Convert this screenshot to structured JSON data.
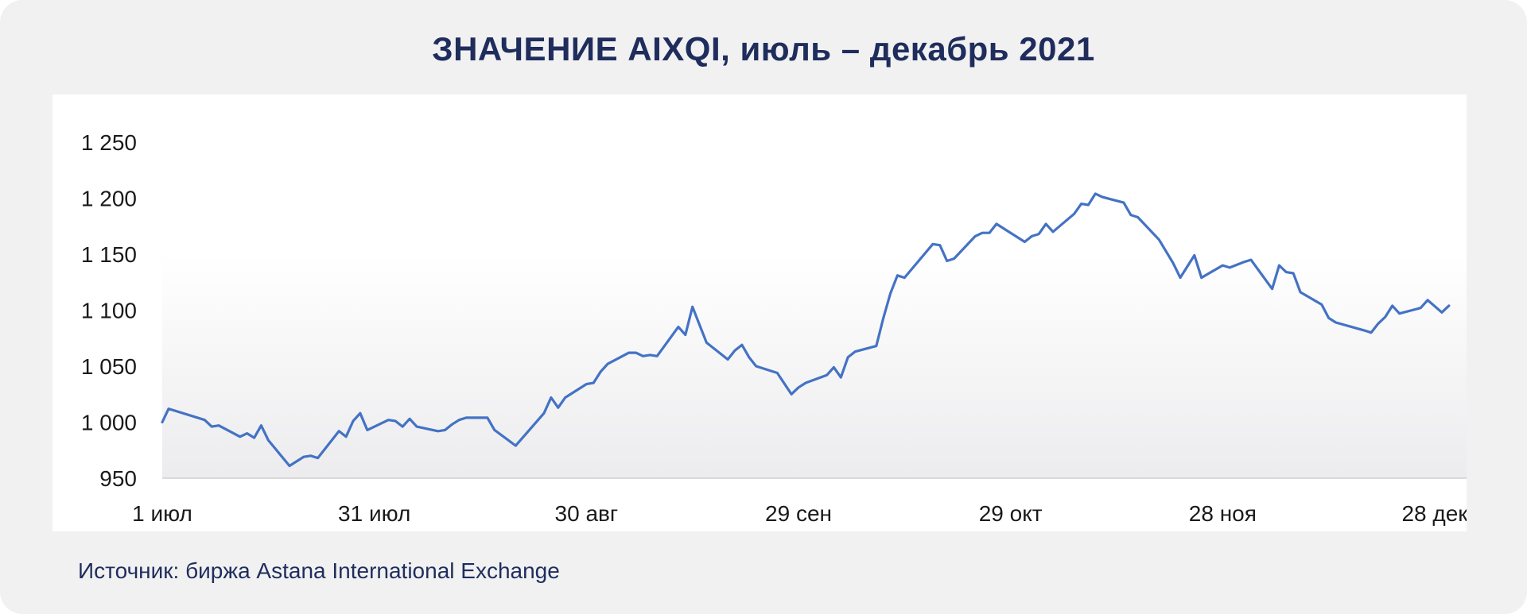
{
  "title": "ЗНАЧЕНИЕ AIXQI, июль – декабрь 2021",
  "source": "Источник: биржа Astana International Exchange",
  "chart_data": {
    "type": "line",
    "title": "ЗНАЧЕНИЕ AIXQI, июль – декабрь 2021",
    "xlabel": "",
    "ylabel": "",
    "x_ticks": [
      {
        "day": 0,
        "label": "1 июл"
      },
      {
        "day": 30,
        "label": "31 июл"
      },
      {
        "day": 60,
        "label": "30 авг"
      },
      {
        "day": 90,
        "label": "29 сен"
      },
      {
        "day": 120,
        "label": "29 окт"
      },
      {
        "day": 150,
        "label": "28 ноя"
      },
      {
        "day": 180,
        "label": "28 дек"
      }
    ],
    "y_ticks": [
      {
        "value": 950,
        "label": "950"
      },
      {
        "value": 1000,
        "label": "1 000"
      },
      {
        "value": 1050,
        "label": "1 050"
      },
      {
        "value": 1100,
        "label": "1 100"
      },
      {
        "value": 1150,
        "label": "1 150"
      },
      {
        "value": 1200,
        "label": "1 200"
      },
      {
        "value": 1250,
        "label": "1 250"
      }
    ],
    "xlim": [
      0,
      180
    ],
    "ylim": [
      950,
      1250
    ],
    "grid": false,
    "series": [
      {
        "color": "#4472c4",
        "points": [
          [
            0,
            1000
          ],
          [
            0.9,
            1012
          ],
          [
            6,
            1002
          ],
          [
            7,
            996
          ],
          [
            8,
            997
          ],
          [
            11,
            987
          ],
          [
            12,
            990
          ],
          [
            13,
            986
          ],
          [
            14,
            997
          ],
          [
            15,
            984
          ],
          [
            18,
            961
          ],
          [
            20,
            969
          ],
          [
            21,
            970
          ],
          [
            22,
            968
          ],
          [
            25,
            992
          ],
          [
            26,
            987
          ],
          [
            27,
            1001
          ],
          [
            28,
            1008
          ],
          [
            29,
            993
          ],
          [
            32,
            1002
          ],
          [
            33,
            1001
          ],
          [
            34,
            996
          ],
          [
            35,
            1003
          ],
          [
            36,
            996
          ],
          [
            39,
            992
          ],
          [
            40,
            993
          ],
          [
            41,
            998
          ],
          [
            42,
            1002
          ],
          [
            43,
            1004
          ],
          [
            46,
            1004
          ],
          [
            47,
            993
          ],
          [
            50,
            979
          ],
          [
            54,
            1008
          ],
          [
            55,
            1022
          ],
          [
            56,
            1013
          ],
          [
            57,
            1022
          ],
          [
            60,
            1034
          ],
          [
            61,
            1035
          ],
          [
            62,
            1045
          ],
          [
            63,
            1052
          ],
          [
            66,
            1062
          ],
          [
            67,
            1062
          ],
          [
            68,
            1059
          ],
          [
            69,
            1060
          ],
          [
            70,
            1059
          ],
          [
            73,
            1085
          ],
          [
            74,
            1078
          ],
          [
            75,
            1103
          ],
          [
            77,
            1071
          ],
          [
            80,
            1056
          ],
          [
            81,
            1064
          ],
          [
            82,
            1069
          ],
          [
            83,
            1058
          ],
          [
            84,
            1050
          ],
          [
            87,
            1044
          ],
          [
            89,
            1025
          ],
          [
            90,
            1031
          ],
          [
            91,
            1035
          ],
          [
            94,
            1042
          ],
          [
            95,
            1049
          ],
          [
            96,
            1040
          ],
          [
            97,
            1058
          ],
          [
            98,
            1063
          ],
          [
            101,
            1068
          ],
          [
            102,
            1093
          ],
          [
            103,
            1115
          ],
          [
            104,
            1131
          ],
          [
            105,
            1129
          ],
          [
            109,
            1159
          ],
          [
            110,
            1158
          ],
          [
            111,
            1144
          ],
          [
            112,
            1146
          ],
          [
            115,
            1166
          ],
          [
            116,
            1169
          ],
          [
            117,
            1169
          ],
          [
            118,
            1177
          ],
          [
            122,
            1161
          ],
          [
            123,
            1166
          ],
          [
            124,
            1168
          ],
          [
            125,
            1177
          ],
          [
            126,
            1170
          ],
          [
            129,
            1186
          ],
          [
            130,
            1195
          ],
          [
            131,
            1194
          ],
          [
            132,
            1204
          ],
          [
            133,
            1201
          ],
          [
            136,
            1196
          ],
          [
            137,
            1185
          ],
          [
            138,
            1183
          ],
          [
            141,
            1163
          ],
          [
            143,
            1142
          ],
          [
            144,
            1129
          ],
          [
            146,
            1149
          ],
          [
            147,
            1129
          ],
          [
            150,
            1140
          ],
          [
            151,
            1138
          ],
          [
            153,
            1143
          ],
          [
            154,
            1145
          ],
          [
            157,
            1119
          ],
          [
            158,
            1140
          ],
          [
            159,
            1134
          ],
          [
            160,
            1133
          ],
          [
            161,
            1116
          ],
          [
            164,
            1105
          ],
          [
            165,
            1093
          ],
          [
            166,
            1089
          ],
          [
            170,
            1082
          ],
          [
            171,
            1080
          ],
          [
            172,
            1088
          ],
          [
            173,
            1094
          ],
          [
            174,
            1104
          ],
          [
            175,
            1097
          ],
          [
            178,
            1102
          ],
          [
            179,
            1109
          ],
          [
            181,
            1098
          ],
          [
            182,
            1104
          ]
        ]
      }
    ]
  }
}
